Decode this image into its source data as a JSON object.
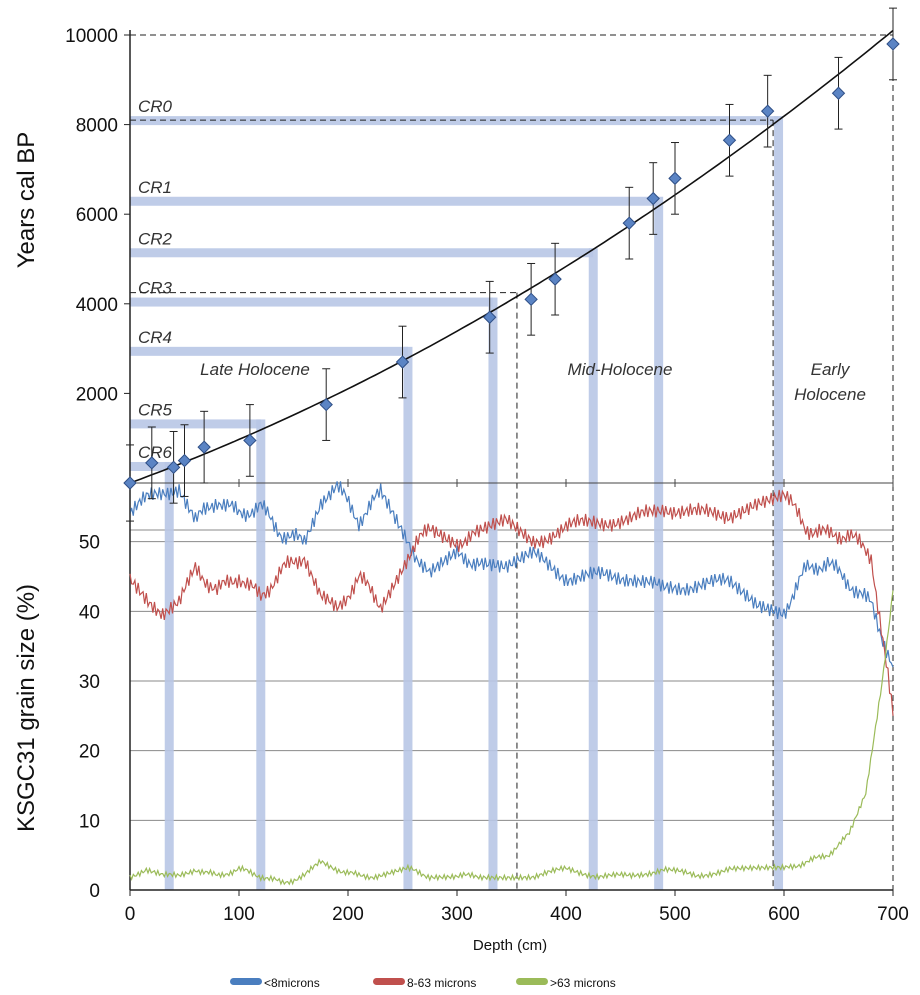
{
  "chart_data": [
    {
      "type": "scatter",
      "ylabel": "Years cal BP",
      "xlim": [
        0,
        700
      ],
      "ylim": [
        0,
        10000
      ],
      "yticks": [
        2000,
        4000,
        6000,
        8000,
        10000
      ],
      "ages": {
        "x": [
          0,
          20,
          40,
          50,
          68,
          110,
          180,
          250,
          330,
          368,
          390,
          458,
          480,
          500,
          550,
          585,
          650,
          700
        ],
        "y": [
          0,
          450,
          350,
          500,
          800,
          950,
          1750,
          2700,
          3700,
          4100,
          4550,
          5800,
          6350,
          6800,
          7650,
          8300,
          8700,
          9800
        ],
        "err": [
          850,
          800,
          800,
          800,
          800,
          800,
          800,
          800,
          800,
          800,
          800,
          800,
          800,
          800,
          800,
          800,
          800,
          800
        ]
      },
      "fit_curve": {
        "x": [
          0,
          100,
          200,
          300,
          400,
          500,
          600,
          700
        ],
        "y": [
          0,
          1150,
          2400,
          3750,
          5200,
          6750,
          8400,
          10100
        ]
      },
      "events": [
        {
          "label": "CR0",
          "y": 8100,
          "x": 595
        },
        {
          "label": "CR1",
          "y": 6300,
          "x": 485
        },
        {
          "label": "CR2",
          "y": 5150,
          "x": 425
        },
        {
          "label": "CR3",
          "y": 4050,
          "x": 333
        },
        {
          "label": "CR4",
          "y": 2950,
          "x": 255
        },
        {
          "label": "CR5",
          "y": 1330,
          "x": 120
        },
        {
          "label": "CR6",
          "y": 380,
          "x": 36
        }
      ],
      "dashed": [
        {
          "x": 700,
          "y": 10000
        },
        {
          "x": 590,
          "y": 8100
        },
        {
          "x": 355,
          "y": 4250
        }
      ],
      "periods": [
        "Late Holocene",
        "Mid-Holocene",
        "Early",
        "Holocene"
      ]
    },
    {
      "type": "line",
      "ylabel": "KSGC31 grain size (%)",
      "xlabel": "Depth (cm)",
      "xlim": [
        0,
        700
      ],
      "ylim": [
        0,
        60
      ],
      "xticks": [
        0,
        100,
        200,
        300,
        400,
        500,
        600,
        700
      ],
      "yticks": [
        0,
        10,
        20,
        30,
        40,
        50
      ],
      "series": [
        {
          "name": "<8microns",
          "color": "#4a7ebf",
          "x": [
            0,
            15,
            30,
            45,
            60,
            80,
            100,
            120,
            140,
            160,
            175,
            190,
            210,
            230,
            255,
            275,
            300,
            320,
            345,
            370,
            400,
            430,
            460,
            490,
            520,
            550,
            575,
            600,
            620,
            640,
            660,
            680,
            700
          ],
          "y": [
            54,
            56,
            57,
            58,
            53,
            56,
            54,
            55,
            51,
            50,
            56,
            58,
            53,
            57,
            50,
            45,
            48,
            47,
            46,
            48,
            45,
            45,
            45,
            43,
            44,
            44,
            41,
            40,
            46,
            47,
            44,
            41,
            32
          ]
        },
        {
          "name": "8-63 microns",
          "color": "#c0504d",
          "x": [
            0,
            15,
            30,
            45,
            60,
            80,
            100,
            120,
            140,
            160,
            175,
            190,
            210,
            230,
            255,
            275,
            300,
            320,
            345,
            370,
            400,
            430,
            460,
            490,
            520,
            550,
            575,
            600,
            620,
            640,
            660,
            680,
            700
          ],
          "y": [
            44,
            42,
            40,
            41,
            46,
            43,
            45,
            42,
            46,
            48,
            42,
            40,
            45,
            41,
            48,
            52,
            50,
            51,
            53,
            50,
            52,
            53,
            53,
            55,
            54,
            54,
            56,
            57,
            52,
            51,
            51,
            48,
            25
          ]
        },
        {
          "name": ">63 microns",
          "color": "#9bbb59",
          "x": [
            0,
            15,
            30,
            45,
            60,
            80,
            100,
            120,
            140,
            160,
            175,
            190,
            210,
            230,
            255,
            275,
            300,
            320,
            345,
            370,
            400,
            430,
            460,
            490,
            520,
            550,
            575,
            600,
            620,
            640,
            660,
            675,
            690,
            700
          ],
          "y": [
            2,
            3,
            2,
            2,
            3,
            2,
            3,
            2,
            1,
            2,
            4,
            3,
            2,
            2,
            3,
            2,
            2,
            2,
            2,
            2,
            3,
            2,
            2,
            3,
            2,
            3,
            3,
            3,
            4,
            5,
            8,
            14,
            30,
            43
          ]
        }
      ],
      "legend_position": "bottom"
    }
  ]
}
